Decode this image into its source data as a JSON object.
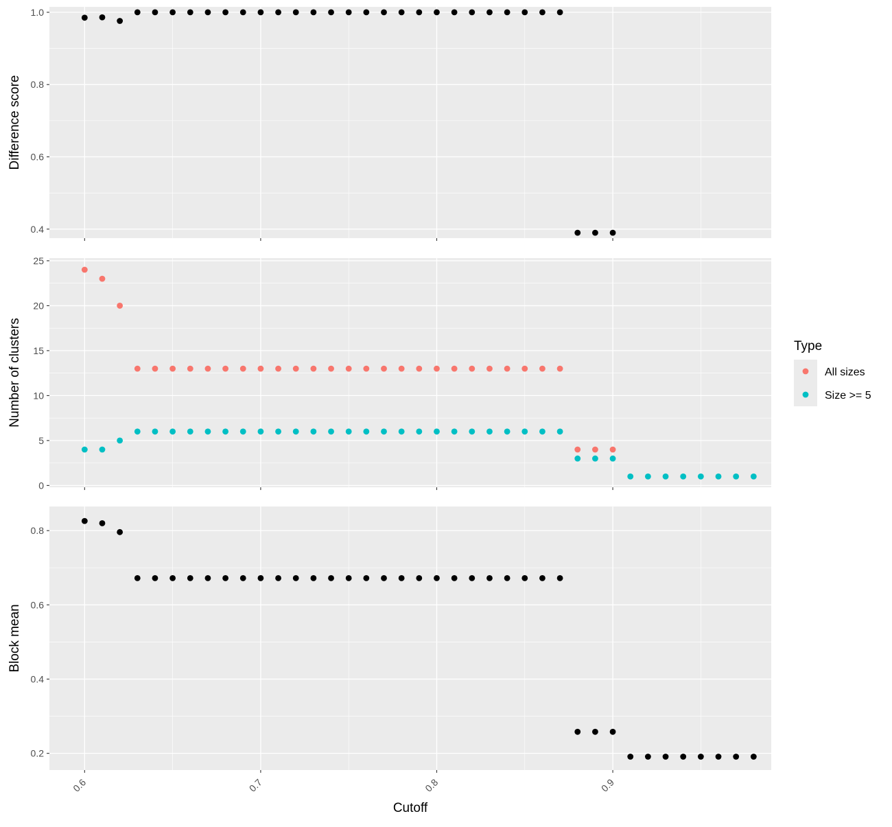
{
  "chart_data": [
    {
      "type": "scatter",
      "panel": "difference-score",
      "ylabel": "Difference score",
      "xlabel": "",
      "xlim": [
        0.58,
        0.99
      ],
      "ylim": [
        0.375,
        1.015
      ],
      "yticks": [
        0.4,
        0.6,
        0.8,
        1.0
      ],
      "yticklabels": [
        "0.4",
        "0.6",
        "0.8",
        "1.0"
      ],
      "series": [
        {
          "color": "#000000",
          "x": [
            0.6,
            0.61,
            0.62,
            0.63,
            0.64,
            0.65,
            0.66,
            0.67,
            0.68,
            0.69,
            0.7,
            0.71,
            0.72,
            0.73,
            0.74,
            0.75,
            0.76,
            0.77,
            0.78,
            0.79,
            0.8,
            0.81,
            0.82,
            0.83,
            0.84,
            0.85,
            0.86,
            0.87,
            0.88,
            0.89,
            0.9
          ],
          "y": [
            0.985,
            0.986,
            0.976,
            1.0,
            1.0,
            1.0,
            1.0,
            1.0,
            1.0,
            1.0,
            1.0,
            1.0,
            1.0,
            1.0,
            1.0,
            1.0,
            1.0,
            1.0,
            1.0,
            1.0,
            1.0,
            1.0,
            1.0,
            1.0,
            1.0,
            1.0,
            1.0,
            1.0,
            0.39,
            0.39,
            0.39
          ]
        }
      ]
    },
    {
      "type": "scatter",
      "panel": "number-of-clusters",
      "ylabel": "Number of clusters",
      "xlabel": "",
      "xlim": [
        0.58,
        0.99
      ],
      "ylim": [
        -0.2,
        25.3
      ],
      "yticks": [
        0,
        5,
        10,
        15,
        20,
        25
      ],
      "yticklabels": [
        "0",
        "5",
        "10",
        "15",
        "20",
        "25"
      ],
      "legend": {
        "title": "Type",
        "position": "right"
      },
      "series": [
        {
          "name": "All sizes",
          "color": "#F8766D",
          "x": [
            0.6,
            0.61,
            0.62,
            0.63,
            0.64,
            0.65,
            0.66,
            0.67,
            0.68,
            0.69,
            0.7,
            0.71,
            0.72,
            0.73,
            0.74,
            0.75,
            0.76,
            0.77,
            0.78,
            0.79,
            0.8,
            0.81,
            0.82,
            0.83,
            0.84,
            0.85,
            0.86,
            0.87,
            0.88,
            0.89,
            0.9
          ],
          "y": [
            24,
            23,
            20,
            13,
            13,
            13,
            13,
            13,
            13,
            13,
            13,
            13,
            13,
            13,
            13,
            13,
            13,
            13,
            13,
            13,
            13,
            13,
            13,
            13,
            13,
            13,
            13,
            13,
            4,
            4,
            4
          ]
        },
        {
          "name": "Size >= 5",
          "color": "#00BFC4",
          "x": [
            0.6,
            0.61,
            0.62,
            0.63,
            0.64,
            0.65,
            0.66,
            0.67,
            0.68,
            0.69,
            0.7,
            0.71,
            0.72,
            0.73,
            0.74,
            0.75,
            0.76,
            0.77,
            0.78,
            0.79,
            0.8,
            0.81,
            0.82,
            0.83,
            0.84,
            0.85,
            0.86,
            0.87,
            0.88,
            0.89,
            0.9,
            0.91,
            0.92,
            0.93,
            0.94,
            0.95,
            0.96,
            0.97,
            0.98
          ],
          "y": [
            4,
            4,
            5,
            6,
            6,
            6,
            6,
            6,
            6,
            6,
            6,
            6,
            6,
            6,
            6,
            6,
            6,
            6,
            6,
            6,
            6,
            6,
            6,
            6,
            6,
            6,
            6,
            6,
            3,
            3,
            3,
            1,
            1,
            1,
            1,
            1,
            1,
            1,
            1
          ]
        }
      ]
    },
    {
      "type": "scatter",
      "panel": "block-mean",
      "ylabel": "Block mean",
      "xlabel": "Cutoff",
      "xlim": [
        0.58,
        0.99
      ],
      "ylim": [
        0.155,
        0.865
      ],
      "yticks": [
        0.2,
        0.4,
        0.6,
        0.8
      ],
      "yticklabels": [
        "0.2",
        "0.4",
        "0.6",
        "0.8"
      ],
      "xticks": [
        0.6,
        0.7,
        0.8,
        0.9
      ],
      "xticklabels": [
        "0.6",
        "0.7",
        "0.8",
        "0.9"
      ],
      "series": [
        {
          "color": "#000000",
          "x": [
            0.6,
            0.61,
            0.62,
            0.63,
            0.64,
            0.65,
            0.66,
            0.67,
            0.68,
            0.69,
            0.7,
            0.71,
            0.72,
            0.73,
            0.74,
            0.75,
            0.76,
            0.77,
            0.78,
            0.79,
            0.8,
            0.81,
            0.82,
            0.83,
            0.84,
            0.85,
            0.86,
            0.87,
            0.88,
            0.89,
            0.9,
            0.91,
            0.92,
            0.93,
            0.94,
            0.95,
            0.96,
            0.97,
            0.98
          ],
          "y": [
            0.826,
            0.82,
            0.796,
            0.672,
            0.672,
            0.672,
            0.672,
            0.672,
            0.672,
            0.672,
            0.672,
            0.672,
            0.672,
            0.672,
            0.672,
            0.672,
            0.672,
            0.672,
            0.672,
            0.672,
            0.672,
            0.672,
            0.672,
            0.672,
            0.672,
            0.672,
            0.672,
            0.672,
            0.258,
            0.258,
            0.258,
            0.191,
            0.191,
            0.191,
            0.191,
            0.191,
            0.191,
            0.191,
            0.191
          ]
        }
      ]
    }
  ]
}
